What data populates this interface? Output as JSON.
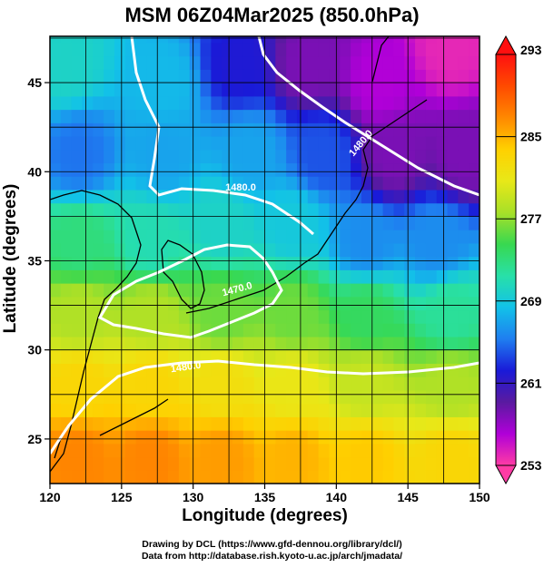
{
  "chart_data": {
    "type": "heatmap",
    "title": "MSM 06Z04Mar2025 (850.0hPa)",
    "xlabel": "Longitude (degrees)",
    "ylabel": "Latitude  (degrees)",
    "xlim": [
      120,
      150
    ],
    "ylim": [
      22.5,
      47.6
    ],
    "x_ticks": [
      120,
      125,
      130,
      135,
      140,
      145,
      150
    ],
    "y_ticks": [
      25,
      30,
      35,
      40,
      45
    ],
    "grid": true,
    "colorbar": {
      "min": 253,
      "max": 293,
      "tick_labels": [
        "293",
        "285",
        "277",
        "269",
        "261",
        "253"
      ],
      "tick_values": [
        293,
        285,
        277,
        269,
        261,
        253
      ],
      "colors": [
        "#ff3ba5",
        "#b000d8",
        "#5a1aa0",
        "#1a1ad8",
        "#1f7ef0",
        "#12c2e8",
        "#28e0a8",
        "#38d850",
        "#a8e028",
        "#e8e818",
        "#ffd000",
        "#ff8800",
        "#ff4a00",
        "#ff1010"
      ],
      "extend": "both"
    },
    "contours": [
      {
        "label": "1480.0"
      },
      {
        "label": "1480.0"
      },
      {
        "label": "1470.0"
      },
      {
        "label": "1480.0"
      }
    ],
    "temperature_points": [
      {
        "lon": 121,
        "lat": 46,
        "t": 270
      },
      {
        "lon": 128,
        "lat": 45,
        "t": 268
      },
      {
        "lon": 133,
        "lat": 46,
        "t": 262
      },
      {
        "lon": 138,
        "lat": 46,
        "t": 258
      },
      {
        "lon": 143,
        "lat": 45,
        "t": 256
      },
      {
        "lon": 148,
        "lat": 47,
        "t": 254
      },
      {
        "lon": 122,
        "lat": 41,
        "t": 265
      },
      {
        "lon": 128,
        "lat": 41,
        "t": 267
      },
      {
        "lon": 134,
        "lat": 41,
        "t": 267
      },
      {
        "lon": 139,
        "lat": 41,
        "t": 264
      },
      {
        "lon": 144,
        "lat": 41,
        "t": 258
      },
      {
        "lon": 149,
        "lat": 41,
        "t": 258
      },
      {
        "lon": 122,
        "lat": 36,
        "t": 273
      },
      {
        "lon": 127,
        "lat": 36,
        "t": 271
      },
      {
        "lon": 132,
        "lat": 37,
        "t": 270
      },
      {
        "lon": 137,
        "lat": 37,
        "t": 269
      },
      {
        "lon": 142,
        "lat": 36,
        "t": 266
      },
      {
        "lon": 147,
        "lat": 36,
        "t": 266
      },
      {
        "lon": 122,
        "lat": 32,
        "t": 278
      },
      {
        "lon": 127,
        "lat": 32,
        "t": 278
      },
      {
        "lon": 132,
        "lat": 32,
        "t": 276
      },
      {
        "lon": 137,
        "lat": 32,
        "t": 276
      },
      {
        "lon": 142,
        "lat": 32,
        "t": 274
      },
      {
        "lon": 148,
        "lat": 32,
        "t": 272
      },
      {
        "lon": 122,
        "lat": 28,
        "t": 283
      },
      {
        "lon": 127,
        "lat": 28,
        "t": 283
      },
      {
        "lon": 132,
        "lat": 28,
        "t": 282
      },
      {
        "lon": 137,
        "lat": 28,
        "t": 281
      },
      {
        "lon": 142,
        "lat": 28,
        "t": 279
      },
      {
        "lon": 148,
        "lat": 28,
        "t": 278
      },
      {
        "lon": 122,
        "lat": 24,
        "t": 287
      },
      {
        "lon": 127,
        "lat": 24,
        "t": 287
      },
      {
        "lon": 132,
        "lat": 24,
        "t": 286
      },
      {
        "lon": 137,
        "lat": 24,
        "t": 285
      },
      {
        "lon": 142,
        "lat": 24,
        "t": 284
      },
      {
        "lon": 148,
        "lat": 24,
        "t": 283
      }
    ]
  },
  "credits": {
    "line1": "Drawing by DCL (https://www.gfd-dennou.org/library/dcl/)",
    "line2": "Data from http://database.rish.kyoto-u.ac.jp/arch/jmadata/"
  }
}
